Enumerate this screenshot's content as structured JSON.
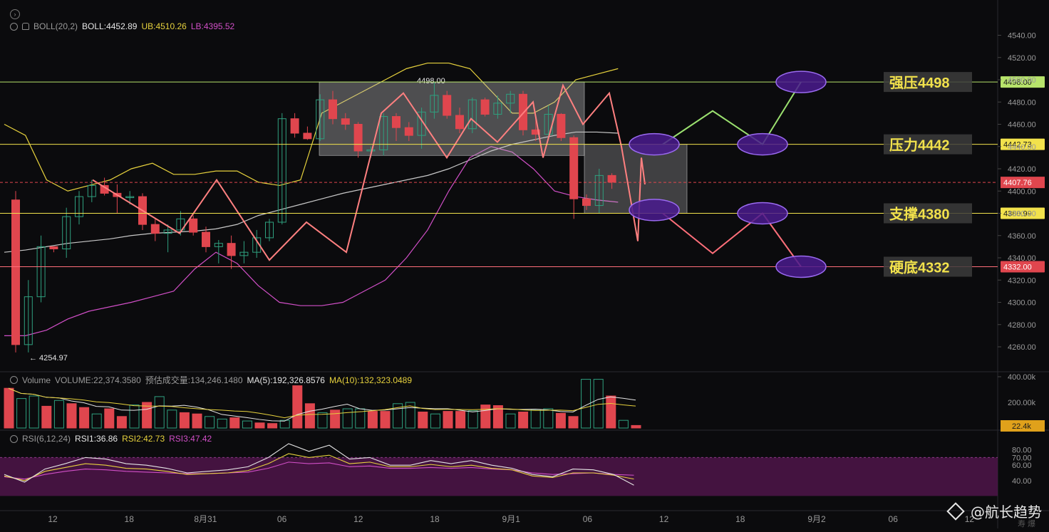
{
  "legend": {
    "boll": {
      "name": "BOLL(20,2)",
      "mid_label": "BOLL:4452.89",
      "ub_label": "UB:4510.26",
      "lb_label": "LB:4395.52"
    },
    "volume": {
      "name": "Volume",
      "vol_label": "VOLUME:22,374.3580",
      "est_label": "预估成交量:134,246.1480",
      "ma5_label": "MA(5):192,326.8576",
      "ma10_label": "MA(10):132,323.0489"
    },
    "rsi": {
      "name": "RSI(6,12,24)",
      "rsi1_label": "RSI1:36.86",
      "rsi2_label": "RSI2:42.73",
      "rsi3_label": "RSI3:47.42"
    }
  },
  "colors": {
    "bull": "#2fa07f",
    "bear": "#e0464e",
    "boll_mid": "#c8c8c8",
    "boll_ub": "#e7d23d",
    "boll_lb": "#d14fc7",
    "zigzag": "#ff8080",
    "proj_up": "#9be16f",
    "proj_down": "#ff6f7a",
    "ellipse_fill": "#4a1b8e",
    "ellipse_stroke": "#9a6af0",
    "level_yellow": "#f2e24c",
    "level_green": "#b7e36b",
    "level_pink": "#ff6f7a",
    "rsi_band": "#4a1446"
  },
  "chart_data": {
    "type": "candlestick",
    "x_labels": [
      "12",
      "18",
      "8月31",
      "06",
      "12",
      "18",
      "9月1",
      "06",
      "12",
      "18",
      "9月2",
      "06",
      "12"
    ],
    "price_axis": {
      "ticks": [
        4540,
        4520,
        4500,
        4480,
        4460,
        4440,
        4420,
        4400,
        4380,
        4360,
        4340,
        4320,
        4300,
        4280,
        4260
      ],
      "labels": [
        "4540.00",
        "4520.00",
        "4500.00",
        "4480.00",
        "4460.00",
        "4440.00",
        "4420.00",
        "4400.00",
        "4380.00",
        "4360.00",
        "4340.00",
        "4320.00",
        "4300.00",
        "4280.00",
        "4260.00"
      ]
    },
    "volume_axis": {
      "labels": [
        "400.00k",
        "200.00k",
        "22.4k"
      ]
    },
    "rsi_axis": {
      "labels": [
        "80.00",
        "70.00",
        "60.00",
        "40.00"
      ]
    },
    "candles": [
      {
        "o": 4392,
        "h": 4400,
        "l": 4255,
        "c": 4262
      },
      {
        "o": 4262,
        "h": 4320,
        "l": 4255,
        "c": 4305
      },
      {
        "o": 4305,
        "h": 4360,
        "l": 4300,
        "c": 4350
      },
      {
        "o": 4350,
        "h": 4350,
        "l": 4345,
        "c": 4348
      },
      {
        "o": 4348,
        "h": 4385,
        "l": 4340,
        "c": 4377
      },
      {
        "o": 4377,
        "h": 4400,
        "l": 4370,
        "c": 4395
      },
      {
        "o": 4395,
        "h": 4410,
        "l": 4390,
        "c": 4405
      },
      {
        "o": 4405,
        "h": 4412,
        "l": 4396,
        "c": 4398
      },
      {
        "o": 4398,
        "h": 4406,
        "l": 4380,
        "c": 4395
      },
      {
        "o": 4395,
        "h": 4400,
        "l": 4388,
        "c": 4395
      },
      {
        "o": 4395,
        "h": 4398,
        "l": 4365,
        "c": 4370
      },
      {
        "o": 4370,
        "h": 4375,
        "l": 4355,
        "c": 4362
      },
      {
        "o": 4362,
        "h": 4370,
        "l": 4345,
        "c": 4365
      },
      {
        "o": 4365,
        "h": 4382,
        "l": 4360,
        "c": 4375
      },
      {
        "o": 4375,
        "h": 4378,
        "l": 4360,
        "c": 4363
      },
      {
        "o": 4363,
        "h": 4368,
        "l": 4345,
        "c": 4350
      },
      {
        "o": 4350,
        "h": 4356,
        "l": 4335,
        "c": 4353
      },
      {
        "o": 4353,
        "h": 4360,
        "l": 4330,
        "c": 4342
      },
      {
        "o": 4342,
        "h": 4355,
        "l": 4335,
        "c": 4345
      },
      {
        "o": 4345,
        "h": 4365,
        "l": 4340,
        "c": 4358
      },
      {
        "o": 4358,
        "h": 4375,
        "l": 4355,
        "c": 4372
      },
      {
        "o": 4372,
        "h": 4470,
        "l": 4370,
        "c": 4465
      },
      {
        "o": 4465,
        "h": 4470,
        "l": 4448,
        "c": 4452
      },
      {
        "o": 4452,
        "h": 4458,
        "l": 4446,
        "c": 4447
      },
      {
        "o": 4447,
        "h": 4487,
        "l": 4445,
        "c": 4482
      },
      {
        "o": 4482,
        "h": 4490,
        "l": 4460,
        "c": 4465
      },
      {
        "o": 4465,
        "h": 4470,
        "l": 4455,
        "c": 4460
      },
      {
        "o": 4460,
        "h": 4462,
        "l": 4430,
        "c": 4436
      },
      {
        "o": 4436,
        "h": 4440,
        "l": 4430,
        "c": 4437
      },
      {
        "o": 4437,
        "h": 4470,
        "l": 4432,
        "c": 4467
      },
      {
        "o": 4467,
        "h": 4470,
        "l": 4445,
        "c": 4457
      },
      {
        "o": 4457,
        "h": 4462,
        "l": 4445,
        "c": 4450
      },
      {
        "o": 4450,
        "h": 4475,
        "l": 4438,
        "c": 4471
      },
      {
        "o": 4471,
        "h": 4498,
        "l": 4465,
        "c": 4486
      },
      {
        "o": 4486,
        "h": 4490,
        "l": 4465,
        "c": 4468
      },
      {
        "o": 4468,
        "h": 4475,
        "l": 4452,
        "c": 4456
      },
      {
        "o": 4456,
        "h": 4484,
        "l": 4452,
        "c": 4482
      },
      {
        "o": 4482,
        "h": 4484,
        "l": 4467,
        "c": 4469
      },
      {
        "o": 4469,
        "h": 4486,
        "l": 4465,
        "c": 4479
      },
      {
        "o": 4479,
        "h": 4490,
        "l": 4470,
        "c": 4487
      },
      {
        "o": 4487,
        "h": 4490,
        "l": 4450,
        "c": 4455
      },
      {
        "o": 4455,
        "h": 4467,
        "l": 4445,
        "c": 4451
      },
      {
        "o": 4451,
        "h": 4477,
        "l": 4450,
        "c": 4469
      },
      {
        "o": 4469,
        "h": 4470,
        "l": 4445,
        "c": 4448
      },
      {
        "o": 4448,
        "h": 4450,
        "l": 4375,
        "c": 4393
      },
      {
        "o": 4393,
        "h": 4397,
        "l": 4383,
        "c": 4387
      },
      {
        "o": 4387,
        "h": 4420,
        "l": 4380,
        "c": 4414
      },
      {
        "o": 4414,
        "h": 4416,
        "l": 4402,
        "c": 4408
      }
    ],
    "boll_mid": [
      4345,
      4347,
      4350,
      4353,
      4355,
      4357,
      4360,
      4362,
      4363,
      4364,
      4366,
      4370,
      4378,
      4383,
      4388,
      4393,
      4398,
      4402,
      4406,
      4410,
      4414,
      4420,
      4428,
      4436,
      4442,
      4446,
      4450,
      4453,
      4453,
      4452
    ],
    "boll_ub": [
      4460,
      4450,
      4410,
      4400,
      4405,
      4410,
      4420,
      4425,
      4415,
      4415,
      4418,
      4418,
      4408,
      4405,
      4410,
      4470,
      4480,
      4490,
      4500,
      4510,
      4515,
      4515,
      4510,
      4490,
      4470,
      4470,
      4480,
      4500,
      4505,
      4510
    ],
    "boll_lb": [
      4270,
      4270,
      4275,
      4285,
      4292,
      4296,
      4300,
      4305,
      4310,
      4330,
      4345,
      4335,
      4315,
      4300,
      4297,
      4297,
      4300,
      4310,
      4320,
      4340,
      4365,
      4400,
      4430,
      4440,
      4435,
      4420,
      4400,
      4395,
      4392,
      4390
    ],
    "volume_k": [
      310,
      230,
      250,
      170,
      215,
      190,
      160,
      110,
      150,
      90,
      180,
      200,
      245,
      140,
      120,
      110,
      90,
      70,
      80,
      55,
      40,
      35,
      60,
      330,
      190,
      120,
      140,
      150,
      150,
      130,
      130,
      190,
      200,
      125,
      110,
      130,
      130,
      135,
      180,
      175,
      110,
      125,
      145,
      150,
      115,
      90,
      380,
      380,
      250,
      60,
      20
    ],
    "rsi1": [
      48,
      38,
      55,
      62,
      70,
      68,
      62,
      60,
      56,
      50,
      52,
      54,
      58,
      70,
      88,
      78,
      86,
      68,
      70,
      60,
      60,
      66,
      62,
      66,
      60,
      56,
      48,
      45,
      55,
      54,
      48,
      34
    ],
    "rsi2": [
      46,
      40,
      52,
      57,
      62,
      60,
      56,
      55,
      52,
      48,
      49,
      50,
      53,
      62,
      75,
      70,
      73,
      62,
      64,
      58,
      58,
      61,
      58,
      60,
      56,
      54,
      46,
      44,
      50,
      50,
      47,
      42
    ],
    "rsi3": [
      45,
      42,
      48,
      52,
      55,
      54,
      52,
      51,
      50,
      49,
      49,
      50,
      51,
      56,
      64,
      62,
      63,
      58,
      59,
      56,
      56,
      57,
      56,
      57,
      55,
      54,
      50,
      48,
      49,
      50,
      48,
      47
    ],
    "zigzag": [
      4410,
      4362,
      4410,
      4338,
      4372,
      4345,
      4470,
      4488,
      4430,
      4465,
      4444,
      4480,
      4430,
      4495,
      4460,
      4488,
      4440,
      4355,
      4430,
      4406
    ],
    "annotations": {
      "high_label": "4498.00",
      "low_label": "← 4254.97"
    },
    "levels": [
      {
        "name": "强压4498",
        "price": 4498,
        "tag": "4498.00",
        "color_key": "level_green",
        "tag_bg": "#b7e36b",
        "tag_fg": "#1a1a1a"
      },
      {
        "name": "压力4442",
        "price": 4442,
        "tag": "4442.73",
        "color_key": "level_yellow",
        "tag_bg": "#f2e24c",
        "tag_fg": "#1a1a1a"
      },
      {
        "name": "支撑4380",
        "price": 4380,
        "tag": "4380.99",
        "color_key": "level_yellow",
        "tag_bg": "#f2e24c",
        "tag_fg": "#1a1a1a"
      },
      {
        "name": "硬底4332",
        "price": 4332,
        "tag": "4332.00",
        "color_key": "level_pink",
        "tag_bg": "#e0464e",
        "tag_fg": "#ffffff"
      }
    ],
    "current_price": {
      "value": 4407.76,
      "tag": "4407.76"
    },
    "volume_tag": "22.4k",
    "projection_up": [
      4442,
      4472,
      4442,
      4498
    ],
    "projection_down": [
      4380,
      4344,
      4380,
      4332
    ]
  },
  "watermark": {
    "text": "@航长趋势"
  },
  "footer_glyphs": "寿 爆"
}
